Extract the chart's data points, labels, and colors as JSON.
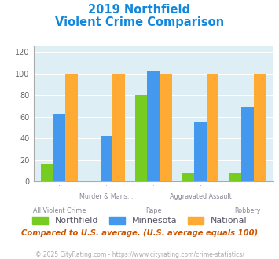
{
  "title_line1": "2019 Northfield",
  "title_line2": "Violent Crime Comparison",
  "categories": [
    "All Violent Crime",
    "Murder & Mans...",
    "Rape",
    "Aggravated Assault",
    "Robbery"
  ],
  "northfield": [
    16,
    0,
    80,
    8,
    7
  ],
  "minnesota": [
    63,
    42,
    103,
    55,
    69
  ],
  "national": [
    100,
    100,
    100,
    100,
    100
  ],
  "color_northfield": "#77cc22",
  "color_minnesota": "#4499ee",
  "color_national": "#ffaa33",
  "ylabel_ticks": [
    0,
    20,
    40,
    60,
    80,
    100,
    120
  ],
  "ylim": [
    0,
    125
  ],
  "bg_color": "#ddeef5",
  "title_color": "#1188dd",
  "note_text": "Compared to U.S. average. (U.S. average equals 100)",
  "footer_text": "© 2025 CityRating.com - https://www.cityrating.com/crime-statistics/",
  "note_color": "#cc5500",
  "footer_color": "#aaaaaa",
  "legend_text_color": "#555566"
}
